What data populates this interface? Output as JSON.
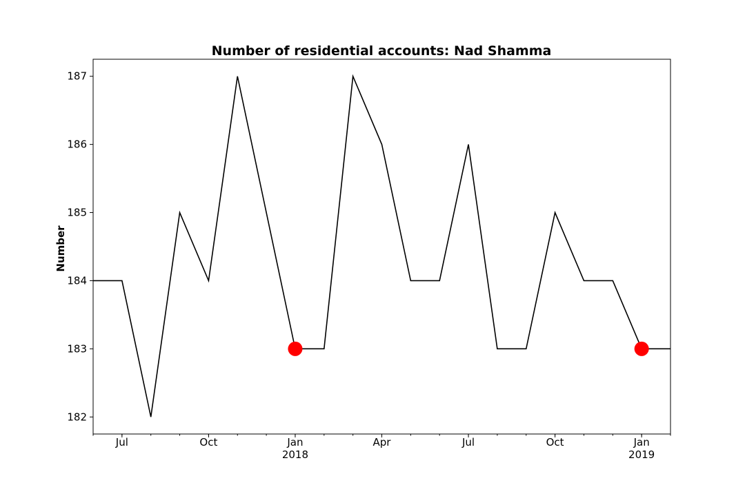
{
  "chart_data": {
    "type": "line",
    "title": "Number of residential accounts: Nad Shamma",
    "xlabel": "",
    "ylabel": "Number",
    "x": [
      "2017-06",
      "2017-07",
      "2017-08",
      "2017-09",
      "2017-10",
      "2017-11",
      "2017-12",
      "2018-01",
      "2018-02",
      "2018-03",
      "2018-04",
      "2018-05",
      "2018-06",
      "2018-07",
      "2018-08",
      "2018-09",
      "2018-10",
      "2018-11",
      "2018-12",
      "2019-01",
      "2019-02"
    ],
    "series": [
      {
        "values": [
          184,
          184,
          182,
          185,
          184,
          187,
          185,
          183,
          183,
          187,
          186,
          184,
          184,
          186,
          183,
          183,
          185,
          184,
          184,
          183,
          183
        ],
        "color": "#000000"
      }
    ],
    "highlighted_points": [
      {
        "x": "2018-01",
        "y": 183
      },
      {
        "x": "2019-01",
        "y": 183
      }
    ],
    "highlight_color": "#ff0000",
    "xlim": [
      "2017-06",
      "2019-02"
    ],
    "ylim": [
      181.75,
      187.25
    ],
    "yticks": [
      "182",
      "183",
      "184",
      "185",
      "186",
      "187"
    ],
    "xticks": [
      {
        "x": "2017-07",
        "label": "Jul",
        "sublabel": ""
      },
      {
        "x": "2017-10",
        "label": "Oct",
        "sublabel": ""
      },
      {
        "x": "2018-01",
        "label": "Jan",
        "sublabel": "2018"
      },
      {
        "x": "2018-04",
        "label": "Apr",
        "sublabel": ""
      },
      {
        "x": "2018-07",
        "label": "Jul",
        "sublabel": ""
      },
      {
        "x": "2018-10",
        "label": "Oct",
        "sublabel": ""
      },
      {
        "x": "2019-01",
        "label": "Jan",
        "sublabel": "2019"
      }
    ],
    "grid": false,
    "legend": "none"
  }
}
